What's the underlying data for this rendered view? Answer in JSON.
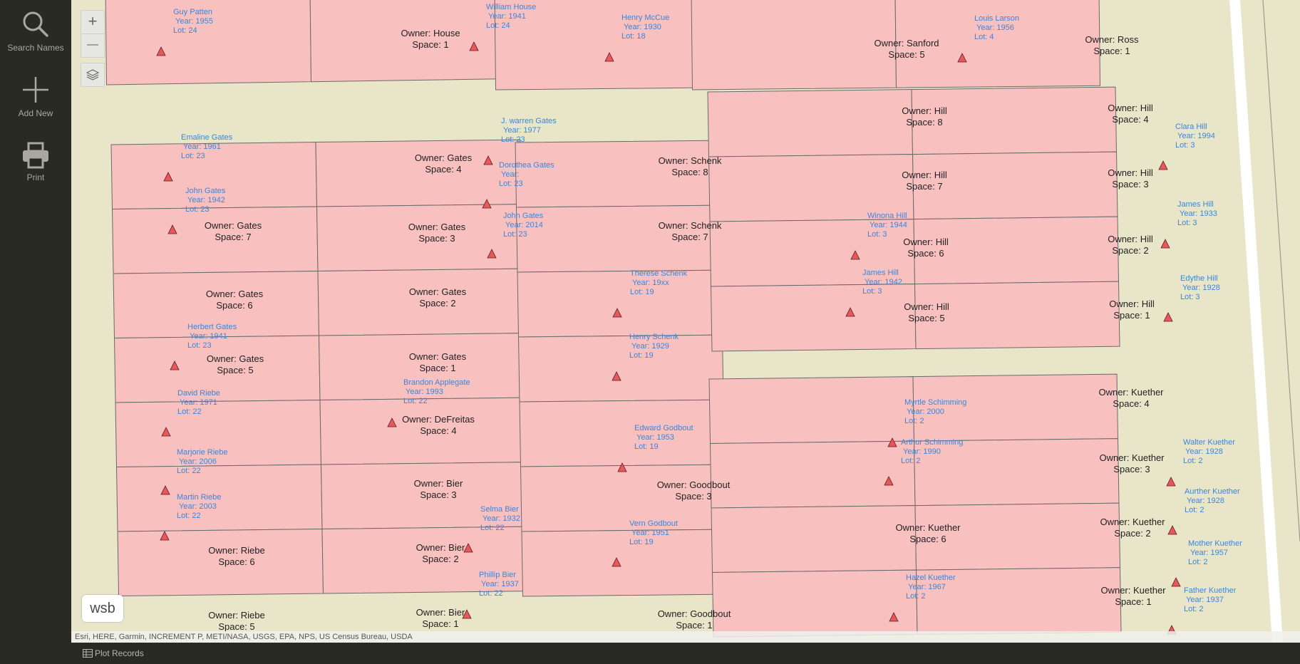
{
  "sidebar": {
    "search_label": "Search Names",
    "add_label": "Add New",
    "print_label": "Print"
  },
  "map": {
    "zoom_in": "+",
    "zoom_out": "—",
    "logo": "wsb",
    "attribution": "Esri, HERE, Garmin, INCREMENT P, METI/NASA, USGS, EPA, NPS, US Census Bureau, USDA"
  },
  "bottom": {
    "plot_records_label": "Plot Records"
  },
  "colors": {
    "plot_fill": "#f9c0c0",
    "plot_stroke": "#6a6a6a",
    "marker_fill": "#e8585a",
    "label_blue": "#3a86d8",
    "ground": "#e9e5c9"
  },
  "plot_texts": [
    {
      "owner": "Owner: House",
      "space": "Space: 1"
    },
    {
      "owner": "Owner: Sanford",
      "space": "Space: 5"
    },
    {
      "owner": "Owner: Ross",
      "space": "Space: 1"
    },
    {
      "owner": "Owner: Gates",
      "space": "Space: 4"
    },
    {
      "owner": "Owner: Gates",
      "space": "Space: 7"
    },
    {
      "owner": "Owner: Gates",
      "space": "Space: 3"
    },
    {
      "owner": "Owner: Gates",
      "space": "Space: 6"
    },
    {
      "owner": "Owner: Gates",
      "space": "Space: 2"
    },
    {
      "owner": "Owner: Gates",
      "space": "Space: 5"
    },
    {
      "owner": "Owner: Gates",
      "space": "Space: 1"
    },
    {
      "owner": "Owner: DeFreitas",
      "space": "Space: 4"
    },
    {
      "owner": "Owner: Bier",
      "space": "Space: 3"
    },
    {
      "owner": "Owner: Riebe",
      "space": "Space: 6"
    },
    {
      "owner": "Owner: Bier",
      "space": "Space: 2"
    },
    {
      "owner": "Owner: Riebe",
      "space": "Space: 5"
    },
    {
      "owner": "Owner: Bier",
      "space": "Space: 1"
    },
    {
      "owner": "Owner: Schenk",
      "space": "Space: 8"
    },
    {
      "owner": "Owner: Schenk",
      "space": "Space: 7"
    },
    {
      "owner": "Owner: Goodbout",
      "space": "Space: 3"
    },
    {
      "owner": "Owner: Goodbout",
      "space": "Space: 1"
    },
    {
      "owner": "Owner: Hill",
      "space": "Space: 8"
    },
    {
      "owner": "Owner: Hill",
      "space": "Space: 4"
    },
    {
      "owner": "Owner: Hill",
      "space": "Space: 7"
    },
    {
      "owner": "Owner: Hill",
      "space": "Space: 3"
    },
    {
      "owner": "Owner: Hill",
      "space": "Space: 6"
    },
    {
      "owner": "Owner: Hill",
      "space": "Space: 2"
    },
    {
      "owner": "Owner: Hill",
      "space": "Space: 5"
    },
    {
      "owner": "Owner: Hill",
      "space": "Space: 1"
    },
    {
      "owner": "Owner: Kuether",
      "space": "Space: 4"
    },
    {
      "owner": "Owner: Kuether",
      "space": "Space: 3"
    },
    {
      "owner": "Owner: Kuether",
      "space": "Space: 6"
    },
    {
      "owner": "Owner: Kuether",
      "space": "Space: 2"
    },
    {
      "owner": "Owner: Kuether",
      "space": "Space: 1"
    }
  ],
  "burials": [
    {
      "name": "Guy Patten",
      "year": "Year: 1955",
      "lot": "Lot: 24"
    },
    {
      "name": "William House",
      "year": "Year: 1941",
      "lot": "Lot: 24"
    },
    {
      "name": "Henry McCue",
      "year": "Year: 1930",
      "lot": "Lot: 18"
    },
    {
      "name": "Louis Larson",
      "year": "Year: 1956",
      "lot": "Lot: 4"
    },
    {
      "name": "Emaline Gates",
      "year": "Year: 1961",
      "lot": "Lot: 23"
    },
    {
      "name": "J. warren Gates",
      "year": "Year: 1977",
      "lot": "Lot: 23"
    },
    {
      "name": "Dorothea Gates",
      "year": "Year:",
      "lot": "Lot: 23"
    },
    {
      "name": "John Gates",
      "year": "Year: 1942",
      "lot": "Lot: 23"
    },
    {
      "name": "John Gates",
      "year": "Year: 2014",
      "lot": "Lot: 23"
    },
    {
      "name": "Herbert Gates",
      "year": "Year: 1941",
      "lot": "Lot: 23"
    },
    {
      "name": "David Riebe",
      "year": "Year: 1971",
      "lot": "Lot: 22"
    },
    {
      "name": "Brandon Applegate",
      "year": "Year: 1993",
      "lot": "Lot: 22"
    },
    {
      "name": "Marjorie Riebe",
      "year": "Year: 2006",
      "lot": "Lot: 22"
    },
    {
      "name": "Martin Riebe",
      "year": "Year: 2003",
      "lot": "Lot: 22"
    },
    {
      "name": "Selma Bier",
      "year": "Year: 1932",
      "lot": "Lot: 22"
    },
    {
      "name": "Phillip Bier",
      "year": "Year: 1937",
      "lot": "Lot: 22"
    },
    {
      "name": "Therese Schenk",
      "year": "Year: 19xx",
      "lot": "Lot: 19"
    },
    {
      "name": "Henry Schenk",
      "year": "Year: 1929",
      "lot": "Lot: 19"
    },
    {
      "name": "Edward Godbout",
      "year": "Year: 1953",
      "lot": "Lot: 19"
    },
    {
      "name": "Vern Godbout",
      "year": "Year: 1951",
      "lot": "Lot: 19"
    },
    {
      "name": "Clara Hill",
      "year": "Year: 1994",
      "lot": "Lot: 3"
    },
    {
      "name": "James Hill",
      "year": "Year: 1933",
      "lot": "Lot: 3"
    },
    {
      "name": "Winona Hill",
      "year": "Year: 1944",
      "lot": "Lot: 3"
    },
    {
      "name": "James Hill",
      "year": "Year: 1942",
      "lot": "Lot: 3"
    },
    {
      "name": "Edythe Hill",
      "year": "Year: 1928",
      "lot": "Lot: 3"
    },
    {
      "name": "Myrtle  Schimming",
      "year": "Year: 2000",
      "lot": "Lot: 2"
    },
    {
      "name": "Arthur Schimming",
      "year": "Year: 1990",
      "lot": "Lot: 2"
    },
    {
      "name": "Walter Kuether",
      "year": "Year: 1928",
      "lot": "Lot: 2"
    },
    {
      "name": "Aurther Kuether",
      "year": "Year: 1928",
      "lot": "Lot: 2"
    },
    {
      "name": "Mother Kuether",
      "year": "Year: 1957",
      "lot": "Lot: 2"
    },
    {
      "name": "Hazel Kuether",
      "year": "Year: 1967",
      "lot": "Lot: 2"
    },
    {
      "name": "Father Kuether",
      "year": "Year: 1937",
      "lot": "Lot: 2"
    }
  ]
}
